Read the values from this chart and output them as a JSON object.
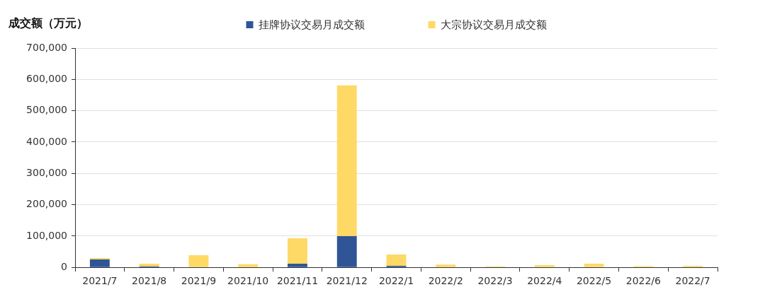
{
  "chart_data": {
    "type": "bar",
    "ylabel": "成交额（万元）",
    "categories": [
      "2021/7",
      "2021/8",
      "2021/9",
      "2021/10",
      "2021/11",
      "2021/12",
      "2022/1",
      "2022/2",
      "2022/3",
      "2022/4",
      "2022/5",
      "2022/6",
      "2022/7"
    ],
    "series": [
      {
        "name": "挂牌协议交易月成交额",
        "color": "#2f5597",
        "values": [
          25000,
          3000,
          0,
          0,
          12000,
          100000,
          5000,
          0,
          0,
          0,
          0,
          0,
          0
        ]
      },
      {
        "name": "大宗协议交易月成交额",
        "color": "#ffd966",
        "values": [
          5000,
          9000,
          39000,
          10000,
          81000,
          481000,
          36000,
          9000,
          3000,
          7000,
          12000,
          4000,
          5000
        ]
      }
    ],
    "stacked": true,
    "ylim": [
      0,
      700000
    ],
    "yticks": [
      0,
      {
        "value": 100000,
        "label": "100,000"
      },
      {
        "value": 200000,
        "label": "200,000"
      },
      {
        "value": 300000,
        "label": "300,000"
      },
      {
        "value": 400000,
        "label": "400,000"
      },
      {
        "value": 500000,
        "label": "500,000"
      },
      {
        "value": 600000,
        "label": "600,000"
      },
      {
        "value": 700000,
        "label": "700,000"
      }
    ],
    "grid": "y",
    "legend": "top"
  }
}
